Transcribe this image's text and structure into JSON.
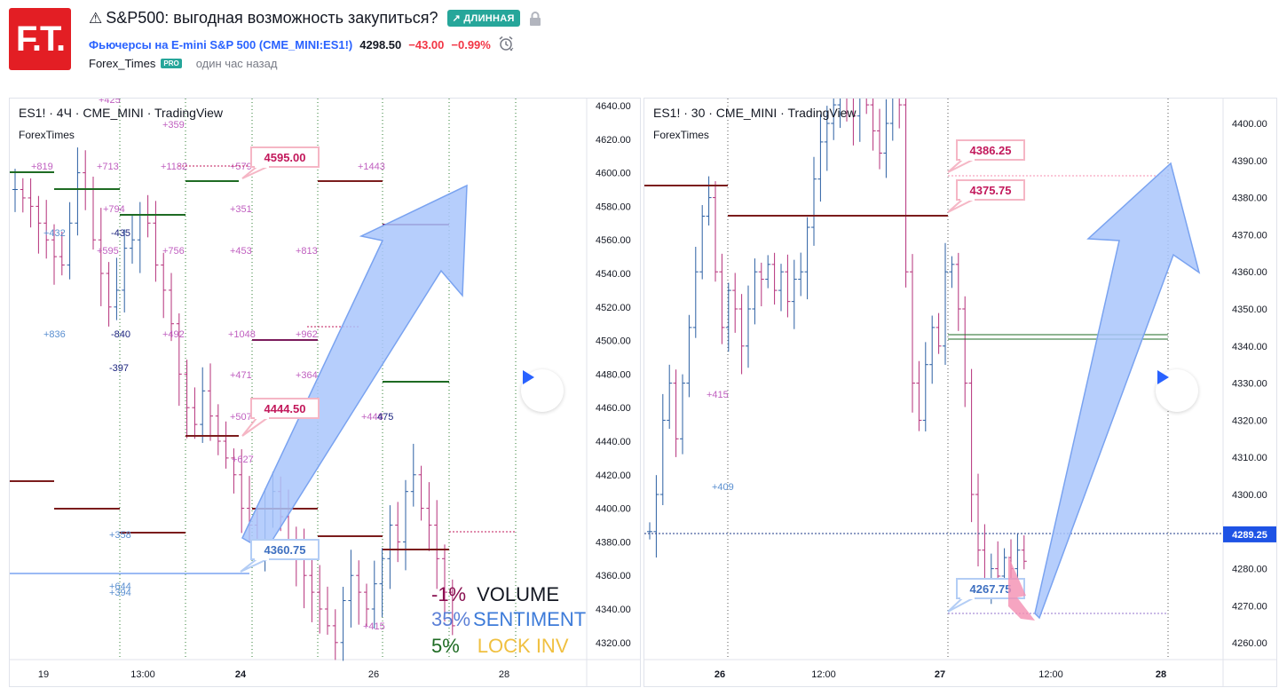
{
  "header": {
    "logo_text": "F.T.",
    "warning_icon": "warning-icon",
    "title": "S&P500: выгодная возможность закупиться?",
    "direction_badge": "↗ ДЛИННАЯ",
    "symbol_name": "Фьючерсы на E-mini S&P 500",
    "symbol_code": "(CME_MINI:ES1!)",
    "price": "4298.50",
    "change": "−43.00",
    "change_pct": "−0.99%",
    "author": "Forex_Times",
    "author_badge": "PRO",
    "published": "один час назад"
  },
  "left_chart": {
    "title": "ES1! · 4Ч · CME_MINI · TradingView",
    "subtitle": "ForexTimes",
    "price_ticks": [
      "4640.00",
      "4620.00",
      "4600.00",
      "4580.00",
      "4560.00",
      "4540.00",
      "4520.00",
      "4500.00",
      "4480.00",
      "4460.00",
      "4440.00",
      "4420.00",
      "4400.00",
      "4380.00",
      "4360.00",
      "4340.00",
      "4320.00"
    ],
    "time_ticks": [
      "19",
      "13:00",
      "24",
      "26",
      "28"
    ],
    "callouts": [
      "4595.00",
      "4444.50",
      "4360.75"
    ],
    "annotations": [
      "+425",
      "+359",
      "+819",
      "+713",
      "+1182",
      "+579",
      "+1443",
      "+794",
      "+351",
      "+432",
      "-435",
      "+595",
      "+756",
      "+453",
      "+813",
      "+836",
      "-840",
      "+492",
      "+1048",
      "+962",
      "-397",
      "+471",
      "+364",
      "+507",
      "+446",
      "475",
      "+627",
      "+358",
      "+644",
      "+394",
      "+415"
    ],
    "legend": {
      "volume_pct": "-1%",
      "volume_label": "VOLUME",
      "sentiment_pct": "35%",
      "sentiment_label": "SENTIMENT",
      "lock_pct": "5%",
      "lock_label": "LOCK INV"
    }
  },
  "right_chart": {
    "title": "ES1! · 30 · CME_MINI · TradingView",
    "subtitle": "ForexTimes",
    "price_ticks": [
      "4400.00",
      "4390.00",
      "4380.00",
      "4370.00",
      "4360.00",
      "4350.00",
      "4340.00",
      "4330.00",
      "4320.00",
      "4310.00",
      "4300.00",
      "4290.00",
      "4280.00",
      "4270.00",
      "4260.00"
    ],
    "time_ticks": [
      "26",
      "12:00",
      "27",
      "12:00",
      "28"
    ],
    "current_price_label": "4289.25",
    "callouts": [
      "4386.25",
      "4375.75",
      "4267.75"
    ],
    "annotations": [
      "+415",
      "+409"
    ]
  },
  "colors": {
    "red_brand": "#e31e24",
    "green_badge": "#26a69a",
    "link_blue": "#2962ff",
    "negative": "#f23645",
    "candle_up": "#2b5fa3",
    "candle_down": "#b5307a",
    "level_red": "#7b1c1c",
    "level_green": "#1e6b23",
    "arrow_fill": "#a9c6fb",
    "price_badge": "#1e53e5"
  }
}
